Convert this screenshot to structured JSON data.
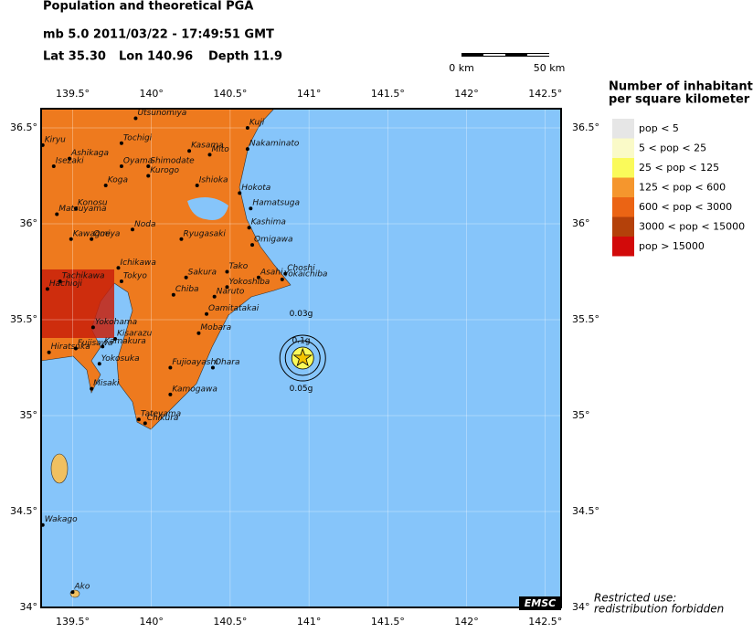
{
  "header": {
    "title": "Population and theoretical PGA",
    "event": "mb 5.0  2011/03/22 - 17:49:51 GMT",
    "lat": "Lat 35.30",
    "lon": "Lon 140.96",
    "depth": "Depth  11.9"
  },
  "scale": {
    "start": "0 km",
    "end": "50 km"
  },
  "map": {
    "xlim": [
      139.3,
      142.6
    ],
    "ylim": [
      34,
      36.6
    ],
    "xticks": [
      {
        "value": 139.5,
        "label": "139.5°"
      },
      {
        "value": 140,
        "label": "140°"
      },
      {
        "value": 140.5,
        "label": "140.5°"
      },
      {
        "value": 141,
        "label": "141°"
      },
      {
        "value": 141.5,
        "label": "141.5°"
      },
      {
        "value": 142,
        "label": "142°"
      },
      {
        "value": 142.5,
        "label": "142.5°"
      }
    ],
    "yticks": [
      {
        "value": 34,
        "label": "34°"
      },
      {
        "value": 34.5,
        "label": "34.5°"
      },
      {
        "value": 35,
        "label": "35°"
      },
      {
        "value": 35.5,
        "label": "35.5°"
      },
      {
        "value": 36,
        "label": "36°"
      },
      {
        "value": 36.5,
        "label": "36.5°"
      }
    ],
    "epicenter": {
      "lon": 140.96,
      "lat": 35.3
    },
    "pga_labels": [
      {
        "label": "0.03g",
        "lon": 140.95,
        "lat": 35.53
      },
      {
        "label": "0.1g",
        "lon": 140.95,
        "lat": 35.39
      },
      {
        "label": "0.05g",
        "lon": 140.95,
        "lat": 35.14
      }
    ],
    "cities": [
      {
        "name": "Utsunomiya",
        "lon": 139.9,
        "lat": 36.55
      },
      {
        "name": "Kuji",
        "lon": 140.61,
        "lat": 36.5
      },
      {
        "name": "Kiryu",
        "lon": 139.31,
        "lat": 36.41
      },
      {
        "name": "Tochigi",
        "lon": 139.81,
        "lat": 36.42
      },
      {
        "name": "Ashikaga",
        "lon": 139.48,
        "lat": 36.34
      },
      {
        "name": "Isezaki",
        "lon": 139.38,
        "lat": 36.3
      },
      {
        "name": "Oyama",
        "lon": 139.81,
        "lat": 36.3
      },
      {
        "name": "Kasama",
        "lon": 140.24,
        "lat": 36.38
      },
      {
        "name": "Mito",
        "lon": 140.37,
        "lat": 36.36
      },
      {
        "name": "Nakaminato",
        "lon": 140.61,
        "lat": 36.39
      },
      {
        "name": "Shimodate",
        "lon": 139.98,
        "lat": 36.3
      },
      {
        "name": "Kurogo",
        "lon": 139.98,
        "lat": 36.25
      },
      {
        "name": "Koga",
        "lon": 139.71,
        "lat": 36.2
      },
      {
        "name": "Ishioka",
        "lon": 140.29,
        "lat": 36.2
      },
      {
        "name": "Hokota",
        "lon": 140.56,
        "lat": 36.16
      },
      {
        "name": "Hamatsuga",
        "lon": 140.63,
        "lat": 36.08
      },
      {
        "name": "Konosu",
        "lon": 139.52,
        "lat": 36.08
      },
      {
        "name": "Matsuyama",
        "lon": 139.4,
        "lat": 36.05
      },
      {
        "name": "Kashima",
        "lon": 140.62,
        "lat": 35.98
      },
      {
        "name": "Noda",
        "lon": 139.88,
        "lat": 35.97
      },
      {
        "name": "Kawagoe",
        "lon": 139.49,
        "lat": 35.92
      },
      {
        "name": "Omiya",
        "lon": 139.62,
        "lat": 35.92
      },
      {
        "name": "Ryugasaki",
        "lon": 140.19,
        "lat": 35.92
      },
      {
        "name": "Omigawa",
        "lon": 140.64,
        "lat": 35.89
      },
      {
        "name": "Ichikawa",
        "lon": 139.79,
        "lat": 35.77
      },
      {
        "name": "Tachikawa",
        "lon": 139.42,
        "lat": 35.7
      },
      {
        "name": "Hachioji",
        "lon": 139.34,
        "lat": 35.66
      },
      {
        "name": "Tokyo",
        "lon": 139.81,
        "lat": 35.7
      },
      {
        "name": "Sakura",
        "lon": 140.22,
        "lat": 35.72
      },
      {
        "name": "Tako",
        "lon": 140.48,
        "lat": 35.75
      },
      {
        "name": "Asahi",
        "lon": 140.68,
        "lat": 35.72
      },
      {
        "name": "Choshi",
        "lon": 140.85,
        "lat": 35.74
      },
      {
        "name": "Yokaichiba",
        "lon": 140.83,
        "lat": 35.71
      },
      {
        "name": "Yokoshiba",
        "lon": 140.48,
        "lat": 35.67
      },
      {
        "name": "Chiba",
        "lon": 140.14,
        "lat": 35.63
      },
      {
        "name": "Naruto",
        "lon": 140.4,
        "lat": 35.62
      },
      {
        "name": "Oamitatakai",
        "lon": 140.35,
        "lat": 35.53
      },
      {
        "name": "Mobara",
        "lon": 140.3,
        "lat": 35.43
      },
      {
        "name": "Yokohama",
        "lon": 139.63,
        "lat": 35.46
      },
      {
        "name": "Kisarazu",
        "lon": 139.77,
        "lat": 35.4
      },
      {
        "name": "Hiratsuka",
        "lon": 139.35,
        "lat": 35.33
      },
      {
        "name": "Fujisawa",
        "lon": 139.52,
        "lat": 35.35
      },
      {
        "name": "Kamakura",
        "lon": 139.69,
        "lat": 35.36
      },
      {
        "name": "Yokosuka",
        "lon": 139.67,
        "lat": 35.27
      },
      {
        "name": "Fujioayashi",
        "lon": 140.12,
        "lat": 35.25
      },
      {
        "name": "Ohara",
        "lon": 140.39,
        "lat": 35.25
      },
      {
        "name": "Misaki",
        "lon": 139.62,
        "lat": 35.14
      },
      {
        "name": "Kamogawa",
        "lon": 140.12,
        "lat": 35.11
      },
      {
        "name": "Tateyama",
        "lon": 139.92,
        "lat": 34.98
      },
      {
        "name": "Chikura",
        "lon": 139.96,
        "lat": 34.96
      },
      {
        "name": "Wakago",
        "lon": 139.31,
        "lat": 34.43
      },
      {
        "name": "Ako",
        "lon": 139.5,
        "lat": 34.08
      }
    ]
  },
  "legend": {
    "title_line1": "Number of inhabitants",
    "title_line2": "per square kilometer",
    "items": [
      {
        "label": "pop < 5",
        "color": "#e6e6e6"
      },
      {
        "label": "5 < pop < 25",
        "color": "#fafac8"
      },
      {
        "label": "25 < pop < 125",
        "color": "#fafa5a"
      },
      {
        "label": "125 < pop < 600",
        "color": "#f5962d"
      },
      {
        "label": "600 < pop < 3000",
        "color": "#eb6414"
      },
      {
        "label": "3000 < pop < 15000",
        "color": "#b4410a"
      },
      {
        "label": "pop > 15000",
        "color": "#d20a0a"
      }
    ]
  },
  "footer": {
    "logo": "EMSC",
    "line1": "Restricted use:",
    "line2": "redistribution forbidden"
  }
}
